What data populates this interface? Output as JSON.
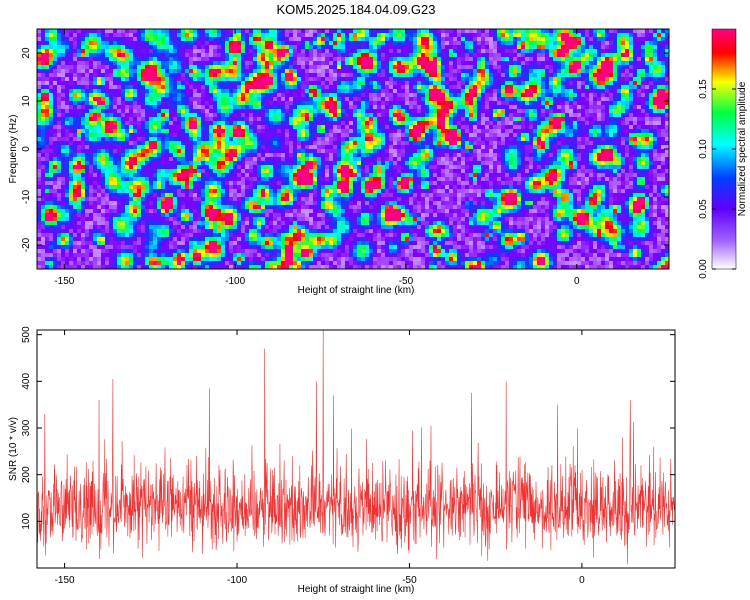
{
  "title": "KOM5.2025.184.04.09.G23",
  "chart_data": [
    {
      "type": "heatmap",
      "xlabel": "Height of straight line (km)",
      "ylabel": "Frequency (Hz)",
      "colorbar_label": "Normalized spectral amplitude",
      "xlim": [
        -158,
        27
      ],
      "ylim": [
        -25,
        25
      ],
      "zlim": [
        0,
        0.2
      ],
      "x_ticks": [
        -150,
        -100,
        -50,
        0
      ],
      "x_tick_labels": [
        "-150",
        "-100",
        "-50",
        "0"
      ],
      "y_ticks": [
        -20,
        -10,
        0,
        10,
        20
      ],
      "y_tick_labels": [
        "-20",
        "-10",
        "0",
        "10",
        "20"
      ],
      "colorbar_ticks": [
        0.0,
        0.05,
        0.1,
        0.15
      ],
      "colorbar_tick_labels": [
        "0.00",
        "0.05",
        "0.10",
        "0.15"
      ],
      "colormap": [
        "#ffffff",
        "#8000ff",
        "#0040ff",
        "#00ffff",
        "#00ff40",
        "#ffff00",
        "#ff0000",
        "#ff0080"
      ],
      "peak": {
        "x": 17,
        "y": -12,
        "value": 0.19
      }
    },
    {
      "type": "line",
      "xlabel": "Height of straight line (km)",
      "ylabel": "SNR (10 * v/v)",
      "xlim": [
        -158,
        27
      ],
      "ylim": [
        0,
        510
      ],
      "x_ticks": [
        -150,
        -100,
        -50,
        0
      ],
      "x_tick_labels": [
        "-150",
        "-100",
        "-50",
        "0"
      ],
      "y_ticks": [
        100,
        200,
        300,
        400,
        500
      ],
      "y_tick_labels": [
        "100",
        "200",
        "300",
        "400",
        "500"
      ],
      "color": "#ee3333",
      "baseline_mean": 130,
      "notable_peaks": [
        {
          "x": -75,
          "y": 510
        },
        {
          "x": -92,
          "y": 470
        },
        {
          "x": -136,
          "y": 405
        },
        {
          "x": -77,
          "y": 400
        },
        {
          "x": -22,
          "y": 400
        },
        {
          "x": -108,
          "y": 385
        },
        {
          "x": -32,
          "y": 375
        },
        {
          "x": -72,
          "y": 370
        },
        {
          "x": -140,
          "y": 360
        },
        {
          "x": 14,
          "y": 360
        },
        {
          "x": -7,
          "y": 350
        }
      ]
    }
  ]
}
